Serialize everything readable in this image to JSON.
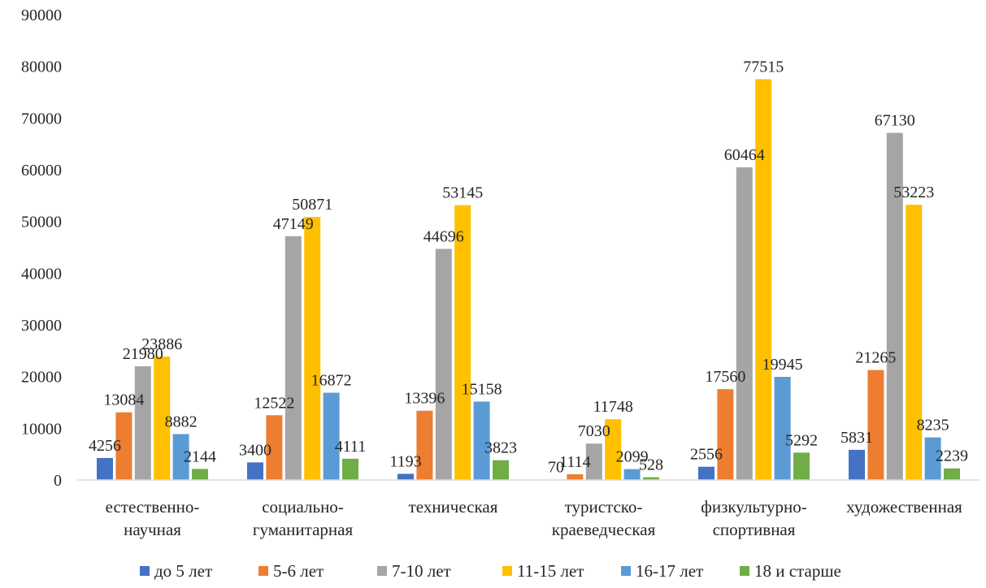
{
  "chart_data": {
    "type": "bar",
    "categories": [
      [
        "естественно-",
        "научная"
      ],
      [
        "социально-",
        "гуманитарная"
      ],
      [
        "техническая"
      ],
      [
        "туристско-",
        "краеведческая"
      ],
      [
        "физкультурно-",
        "спортивная"
      ],
      [
        "художественная"
      ]
    ],
    "series": [
      {
        "name": "до 5 лет",
        "color": "#4472C4",
        "values": [
          4256,
          3400,
          1193,
          70,
          2556,
          5831
        ]
      },
      {
        "name": "5-6 лет",
        "color": "#ED7D31",
        "values": [
          13084,
          12522,
          13396,
          1114,
          17560,
          21265
        ]
      },
      {
        "name": "7-10 лет",
        "color": "#A5A5A5",
        "values": [
          21980,
          47149,
          44696,
          7030,
          60464,
          67130
        ]
      },
      {
        "name": "11-15 лет",
        "color": "#FFC000",
        "values": [
          23886,
          50871,
          53145,
          11748,
          77515,
          53223
        ]
      },
      {
        "name": "16-17 лет",
        "color": "#5B9BD5",
        "values": [
          8882,
          16872,
          15158,
          2099,
          19945,
          8235
        ]
      },
      {
        "name": "18 и старше",
        "color": "#70AD47",
        "values": [
          2144,
          4111,
          3823,
          528,
          5292,
          2239
        ]
      }
    ],
    "ylim": [
      0,
      90000
    ],
    "yticks": [
      0,
      10000,
      20000,
      30000,
      40000,
      50000,
      60000,
      70000,
      80000,
      90000
    ],
    "grid": false,
    "legend": "bottom",
    "title": "",
    "xlabel": "",
    "ylabel": ""
  }
}
